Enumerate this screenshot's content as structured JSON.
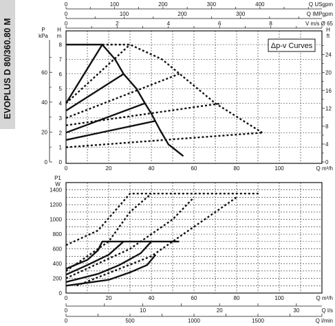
{
  "sidebar": {
    "model": "EVOPLUS D 80/360.80 M"
  },
  "chart_data": [
    {
      "type": "line",
      "legend": "Δp-v Curves",
      "axes": {
        "x_bottom": {
          "label": "Q m³/h",
          "range": [
            0,
            120
          ],
          "ticks": [
            "0",
            "20",
            "40",
            "60",
            "80",
            "100"
          ]
        },
        "x_top_1": {
          "label": "Q USgpm",
          "range": [
            0,
            528
          ],
          "ticks": [
            "0",
            "100",
            "200",
            "300",
            "400"
          ]
        },
        "x_top_2": {
          "label": "Q IMPgpm",
          "range": [
            0,
            440
          ],
          "ticks": [
            "0",
            "100",
            "200",
            "300"
          ]
        },
        "x_top_3": {
          "label": "V m/s Ø 65",
          "range": [
            0,
            10
          ],
          "ticks": [
            "0",
            "2",
            "4",
            "6",
            "8"
          ]
        },
        "y_left_kpa": {
          "label": "P kPa",
          "range": [
            0,
            90
          ],
          "ticks": [
            "0",
            "20",
            "40",
            "60"
          ]
        },
        "y_left_m": {
          "label": "H m",
          "range": [
            0,
            9
          ],
          "ticks": [
            "0",
            "1",
            "2",
            "3",
            "4",
            "5",
            "6",
            "7",
            "8"
          ]
        },
        "y_right_ft": {
          "label": "H ft",
          "range": [
            0,
            29.53
          ],
          "ticks": [
            "0",
            "4",
            "8",
            "12",
            "16",
            "20",
            "24"
          ]
        }
      },
      "series": [
        {
          "style": "solid",
          "points": [
            [
              0,
              8
            ],
            [
              17,
              8
            ],
            [
              23,
              7
            ],
            [
              27,
              6
            ],
            [
              33,
              5
            ],
            [
              37,
              4
            ],
            [
              40,
              3.3
            ],
            [
              44,
              2.2
            ],
            [
              48,
              1.2
            ],
            [
              55,
              0.4
            ]
          ]
        },
        {
          "style": "solid",
          "points": [
            [
              0,
              4
            ],
            [
              17,
              8
            ]
          ]
        },
        {
          "style": "solid",
          "points": [
            [
              0,
              3.5
            ],
            [
              27,
              6
            ]
          ]
        },
        {
          "style": "solid",
          "points": [
            [
              0,
              2
            ],
            [
              37,
              4
            ]
          ]
        },
        {
          "style": "solid",
          "points": [
            [
              0,
              1.5
            ],
            [
              42,
              2.8
            ]
          ]
        },
        {
          "style": "dashed",
          "points": [
            [
              17,
              8
            ],
            [
              30,
              8
            ],
            [
              45,
              7
            ],
            [
              70,
              4
            ],
            [
              92,
              2
            ]
          ]
        },
        {
          "style": "dashed",
          "points": [
            [
              0,
              4
            ],
            [
              30,
              8
            ]
          ]
        },
        {
          "style": "dashed",
          "points": [
            [
              0,
              3
            ],
            [
              53,
              6
            ]
          ]
        },
        {
          "style": "dashed",
          "points": [
            [
              0,
              2.5
            ],
            [
              73,
              4
            ]
          ]
        },
        {
          "style": "dashed",
          "points": [
            [
              0,
              1
            ],
            [
              92,
              2
            ]
          ]
        }
      ]
    },
    {
      "type": "line",
      "axes": {
        "x_bottom_1": {
          "label": "Q m³/h",
          "range": [
            0,
            120
          ],
          "ticks": [
            "0",
            "20",
            "40",
            "60",
            "80",
            "100"
          ]
        },
        "x_bottom_2": {
          "label": "Q l/s",
          "range": [
            0,
            33.33
          ],
          "ticks": [
            "0",
            "10",
            "20",
            "30"
          ]
        },
        "x_bottom_3": {
          "label": "Q l/min",
          "range": [
            0,
            2000
          ],
          "ticks": [
            "0",
            "500",
            "1000",
            "1500"
          ]
        },
        "y_left": {
          "label": "P1 W",
          "range": [
            0,
            1500
          ],
          "ticks": [
            "0",
            "200",
            "400",
            "600",
            "800",
            "1000",
            "1200",
            "1400"
          ]
        }
      },
      "series": [
        {
          "style": "solid",
          "points": [
            [
              0,
              330
            ],
            [
              10,
              450
            ],
            [
              15,
              580
            ],
            [
              17,
              700
            ],
            [
              53,
              700
            ]
          ]
        },
        {
          "style": "solid",
          "points": [
            [
              0,
              250
            ],
            [
              10,
              380
            ],
            [
              20,
              520
            ],
            [
              27,
              700
            ]
          ]
        },
        {
          "style": "solid",
          "points": [
            [
              0,
              150
            ],
            [
              15,
              260
            ],
            [
              25,
              380
            ],
            [
              35,
              540
            ],
            [
              40,
              700
            ]
          ]
        },
        {
          "style": "solid",
          "points": [
            [
              0,
              100
            ],
            [
              20,
              180
            ],
            [
              30,
              280
            ],
            [
              38,
              380
            ],
            [
              42,
              520
            ]
          ]
        },
        {
          "style": "dashed",
          "points": [
            [
              0,
              650
            ],
            [
              15,
              850
            ],
            [
              30,
              1350
            ],
            [
              91,
              1350
            ]
          ]
        },
        {
          "style": "dashed",
          "points": [
            [
              0,
              300
            ],
            [
              20,
              700
            ],
            [
              30,
              1100
            ],
            [
              40,
              1350
            ]
          ]
        },
        {
          "style": "dashed",
          "points": [
            [
              0,
              200
            ],
            [
              30,
              600
            ],
            [
              50,
              1000
            ],
            [
              60,
              1300
            ]
          ]
        },
        {
          "style": "dashed",
          "points": [
            [
              5,
              100
            ],
            [
              40,
              500
            ],
            [
              60,
              900
            ],
            [
              80,
              1300
            ]
          ]
        }
      ]
    }
  ]
}
